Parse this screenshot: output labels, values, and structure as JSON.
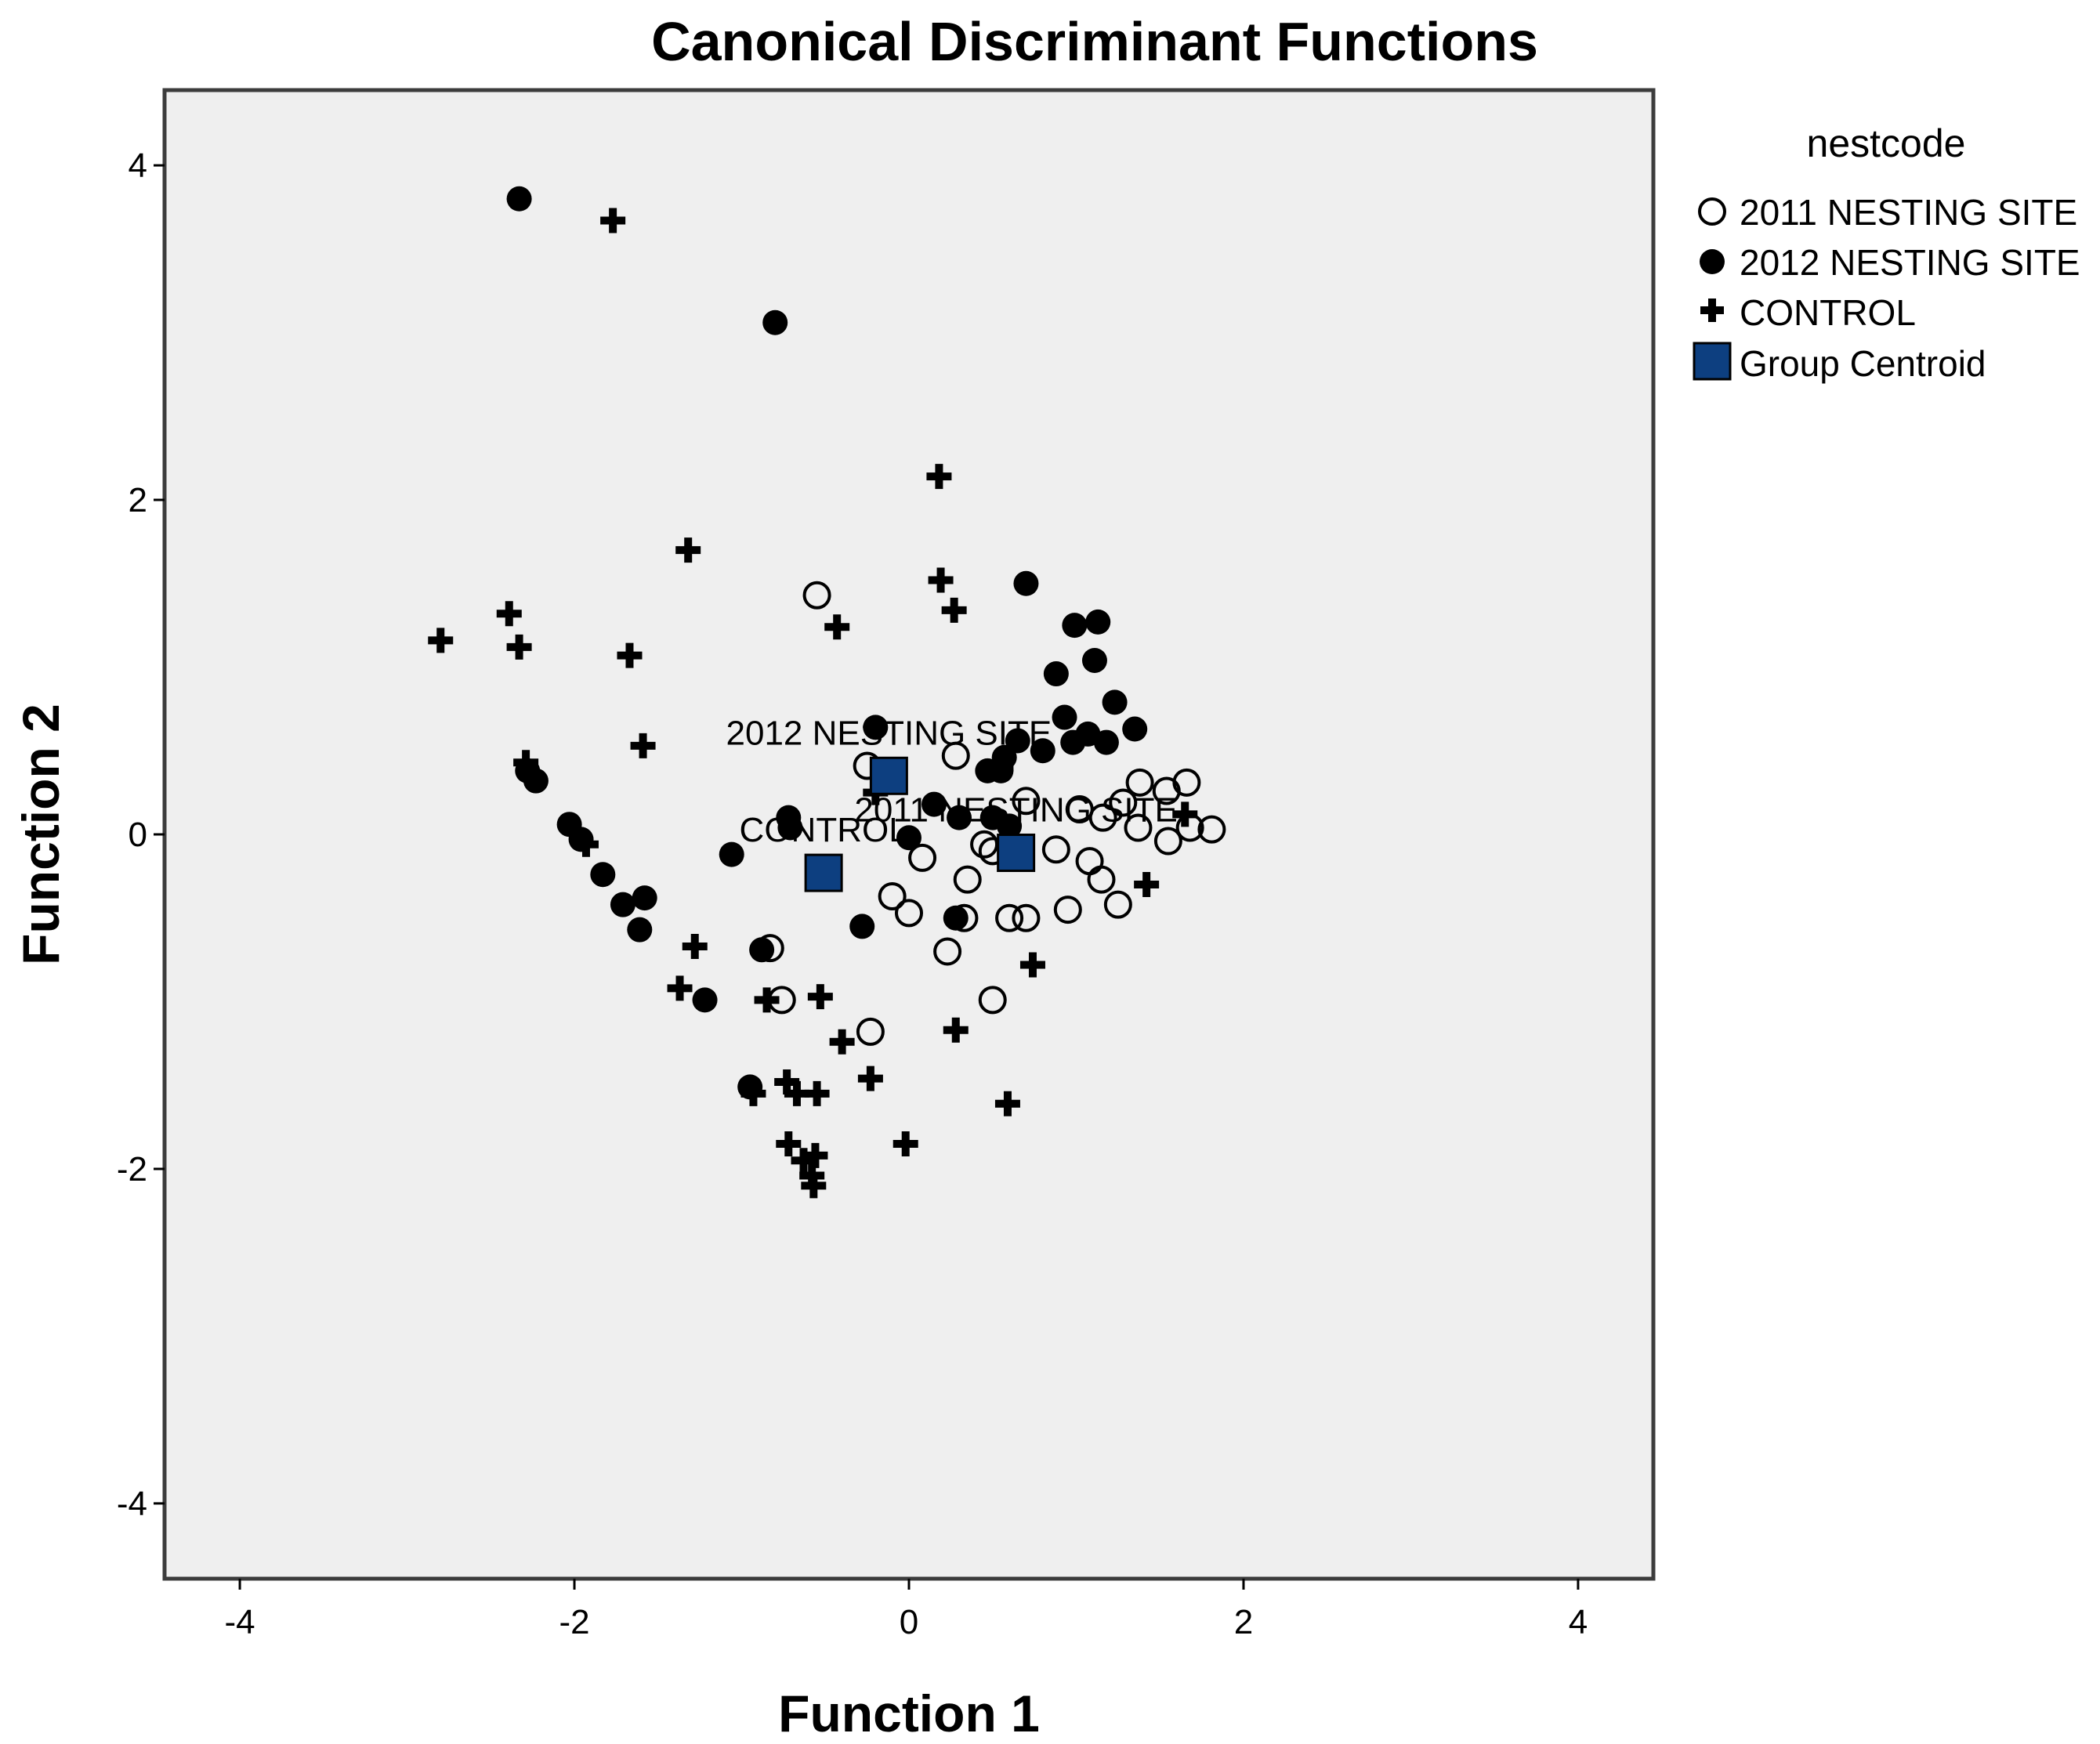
{
  "chart_data": {
    "type": "scatter",
    "title": "Canonical Discriminant Functions",
    "xlabel": "Function 1",
    "ylabel": "Function 2",
    "xlim": [
      -4.45,
      4.45
    ],
    "ylim": [
      -4.45,
      4.45
    ],
    "xticks": [
      "-4",
      "-2",
      "0",
      "2",
      "4"
    ],
    "yticks": [
      "4",
      "2",
      "0",
      "-2",
      "-4"
    ],
    "grid": false,
    "legend_position": "right",
    "legend": {
      "title": "nestcode",
      "entries": [
        "2011 NESTING SITE",
        "2012 NESTING SITE",
        "CONTROL",
        "Group Centroid"
      ]
    },
    "colors": {
      "plot_background": "#efefef",
      "marker": "#000000",
      "centroid": "#0d3f80"
    },
    "series": [
      {
        "name": "2011 NESTING SITE",
        "marker": "open-circle",
        "points": [
          [
            -0.55,
            1.43
          ],
          [
            0.28,
            0.47
          ],
          [
            -0.25,
            0.41
          ],
          [
            0.7,
            0.2
          ],
          [
            1.02,
            0.15
          ],
          [
            1.16,
            0.1
          ],
          [
            1.28,
            0.19
          ],
          [
            1.38,
            0.31
          ],
          [
            1.37,
            0.04
          ],
          [
            1.54,
            0.26
          ],
          [
            1.66,
            0.31
          ],
          [
            1.68,
            0.04
          ],
          [
            1.81,
            0.03
          ],
          [
            1.55,
            -0.04
          ],
          [
            0.45,
            -0.06
          ],
          [
            0.5,
            -0.1
          ],
          [
            0.88,
            -0.09
          ],
          [
            1.08,
            -0.16
          ],
          [
            1.15,
            -0.27
          ],
          [
            0.35,
            -0.27
          ],
          [
            -0.1,
            -0.37
          ],
          [
            0.08,
            -0.14
          ],
          [
            0.0,
            -0.47
          ],
          [
            0.33,
            -0.5
          ],
          [
            0.6,
            -0.5
          ],
          [
            0.7,
            -0.5
          ],
          [
            0.95,
            -0.45
          ],
          [
            1.25,
            -0.42
          ],
          [
            0.23,
            -0.7
          ],
          [
            0.5,
            -0.99
          ],
          [
            -0.23,
            -1.18
          ],
          [
            -0.76,
            -0.99
          ],
          [
            -0.83,
            -0.68
          ]
        ]
      },
      {
        "name": "2012 NESTING SITE",
        "marker": "filled-circle",
        "points": [
          [
            -2.33,
            3.8
          ],
          [
            -0.8,
            3.06
          ],
          [
            0.7,
            1.5
          ],
          [
            0.99,
            1.25
          ],
          [
            1.13,
            1.27
          ],
          [
            1.11,
            1.04
          ],
          [
            0.88,
            0.96
          ],
          [
            1.23,
            0.79
          ],
          [
            0.93,
            0.7
          ],
          [
            0.98,
            0.55
          ],
          [
            1.18,
            0.55
          ],
          [
            1.07,
            0.6
          ],
          [
            1.35,
            0.63
          ],
          [
            0.65,
            0.56
          ],
          [
            0.8,
            0.5
          ],
          [
            0.57,
            0.46
          ],
          [
            0.55,
            0.38
          ],
          [
            0.47,
            0.38
          ],
          [
            -0.2,
            0.64
          ],
          [
            0.15,
            0.18
          ],
          [
            0.3,
            0.1
          ],
          [
            0.6,
            0.05
          ],
          [
            0.5,
            0.1
          ],
          [
            0.0,
            -0.02
          ],
          [
            -0.72,
            0.1
          ],
          [
            -0.71,
            0.04
          ],
          [
            -1.06,
            -0.12
          ],
          [
            -2.23,
            0.32
          ],
          [
            -2.28,
            0.38
          ],
          [
            -2.03,
            0.06
          ],
          [
            -1.96,
            -0.03
          ],
          [
            -1.83,
            -0.24
          ],
          [
            -1.71,
            -0.42
          ],
          [
            -1.58,
            -0.38
          ],
          [
            -1.61,
            -0.57
          ],
          [
            -1.22,
            -0.99
          ],
          [
            -0.88,
            -0.69
          ],
          [
            -0.95,
            -1.51
          ],
          [
            -0.28,
            -0.55
          ],
          [
            0.28,
            -0.5
          ]
        ]
      },
      {
        "name": "CONTROL",
        "marker": "plus",
        "points": [
          [
            -1.77,
            3.67
          ],
          [
            0.18,
            2.14
          ],
          [
            -1.32,
            1.7
          ],
          [
            0.19,
            1.52
          ],
          [
            0.27,
            1.34
          ],
          [
            -0.43,
            1.24
          ],
          [
            -2.39,
            1.32
          ],
          [
            -2.33,
            1.12
          ],
          [
            -2.8,
            1.16
          ],
          [
            -1.67,
            1.07
          ],
          [
            -1.59,
            0.53
          ],
          [
            -2.29,
            0.43
          ],
          [
            -1.93,
            -0.06
          ],
          [
            -0.2,
            0.25
          ],
          [
            0.55,
            0.4
          ],
          [
            1.65,
            0.12
          ],
          [
            1.42,
            -0.3
          ],
          [
            -1.28,
            -0.67
          ],
          [
            -1.37,
            -0.92
          ],
          [
            -0.85,
            -0.99
          ],
          [
            -0.53,
            -0.97
          ],
          [
            -0.4,
            -1.24
          ],
          [
            0.28,
            -1.17
          ],
          [
            -0.23,
            -1.46
          ],
          [
            0.74,
            -0.78
          ],
          [
            -0.73,
            -1.48
          ],
          [
            -0.67,
            -1.55
          ],
          [
            -0.55,
            -1.55
          ],
          [
            -0.93,
            -1.55
          ],
          [
            -0.72,
            -1.85
          ],
          [
            -0.63,
            -1.95
          ],
          [
            -0.56,
            -1.92
          ],
          [
            -0.58,
            -2.04
          ],
          [
            -0.57,
            -2.1
          ],
          [
            -0.02,
            -1.85
          ],
          [
            0.59,
            -1.61
          ]
        ]
      },
      {
        "name": "Group Centroid",
        "marker": "filled-square",
        "points": [
          [
            -0.12,
            0.35,
            "2012 NESTING SITE"
          ],
          [
            -0.51,
            -0.23,
            "CONTROL"
          ],
          [
            0.64,
            -0.11,
            "2011 NESTING SITE"
          ]
        ]
      }
    ]
  }
}
